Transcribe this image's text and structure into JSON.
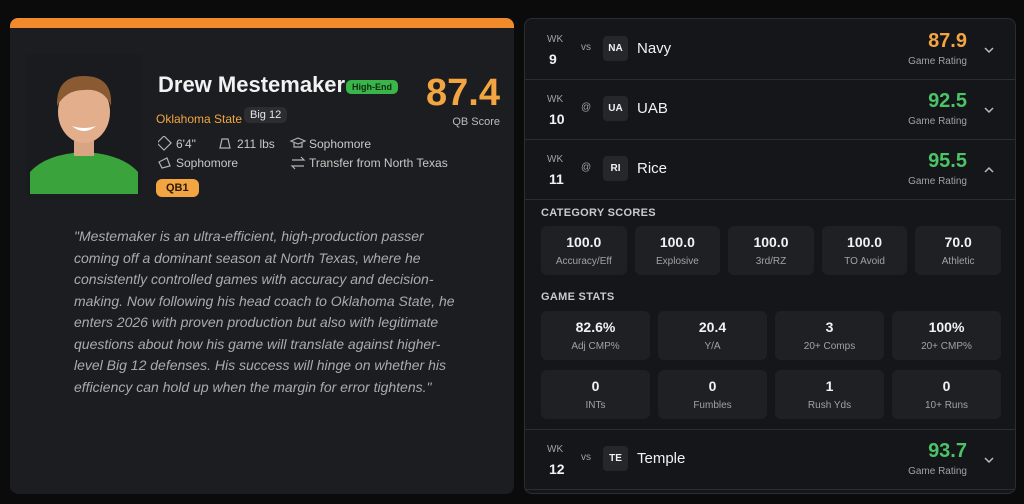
{
  "player": {
    "name": "Drew Mestemaker",
    "badge": "High-End",
    "school": "Oklahoma State",
    "conference": "Big 12",
    "height": "6'4\"",
    "weight": "211 lbs",
    "class": "Sophomore",
    "class_status": "Sophomore",
    "transfer": "Transfer from North Texas",
    "tag": "QB1",
    "score": 87.4,
    "score_label": "QB Score"
  },
  "quote": [
    "\"Mestemaker is an ultra-efficient, high-production passer",
    "coming off a dominant season at North Texas, where he",
    "consistently controlled games with accuracy and decision-",
    "making. Now following his head coach to Oklahoma State, he",
    "enters 2026 with proven production but also with legitimate",
    "questions about how his game will translate against higher-",
    "level Big 12 defenses. His success will hinge on whether his",
    "efficiency can hold up when the margin for error tightens.\""
  ],
  "games": [
    {
      "week_label": "WK",
      "week": 9,
      "location": "vs",
      "abbr": "NA",
      "opponent": "Navy",
      "rating": 87.9,
      "rating_label": "Game Rating",
      "color": "#f2a541",
      "expanded": false
    },
    {
      "week_label": "WK",
      "week": 10,
      "location": "@",
      "abbr": "UA",
      "opponent": "UAB",
      "rating": 92.5,
      "rating_label": "Game Rating",
      "color": "#4cc366",
      "expanded": false
    },
    {
      "week_label": "WK",
      "week": 11,
      "location": "@",
      "abbr": "RI",
      "opponent": "Rice",
      "rating": 95.5,
      "rating_label": "Game Rating",
      "color": "#4cc366",
      "expanded": true
    },
    {
      "week_label": "WK",
      "week": 12,
      "location": "vs",
      "abbr": "TE",
      "opponent": "Temple",
      "rating": 93.7,
      "rating_label": "Game Rating",
      "color": "#4cc366",
      "expanded": false
    }
  ],
  "details": {
    "category_title": "CATEGORY SCORES",
    "categories": [
      {
        "value": "100.0",
        "label": "Accuracy/Eff"
      },
      {
        "value": "100.0",
        "label": "Explosive"
      },
      {
        "value": "100.0",
        "label": "3rd/RZ"
      },
      {
        "value": "100.0",
        "label": "TO Avoid"
      },
      {
        "value": "70.0",
        "label": "Athletic"
      }
    ],
    "stats_title": "GAME STATS",
    "stats": [
      {
        "value": "82.6%",
        "label": "Adj CMP%"
      },
      {
        "value": "20.4",
        "label": "Y/A"
      },
      {
        "value": "3",
        "label": "20+ Comps"
      },
      {
        "value": "100%",
        "label": "20+ CMP%"
      },
      {
        "value": "0",
        "label": "INTs"
      },
      {
        "value": "0",
        "label": "Fumbles"
      },
      {
        "value": "1",
        "label": "Rush Yds"
      },
      {
        "value": "0",
        "label": "10+ Runs"
      }
    ]
  }
}
